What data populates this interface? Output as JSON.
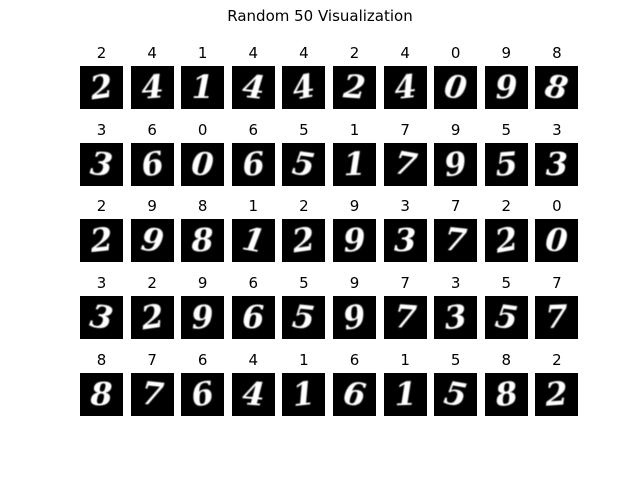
{
  "title": "Random 50 Visualization",
  "chart_data": {
    "type": "image_grid",
    "title": "Random 50 Visualization",
    "rows": 5,
    "cols": 10,
    "labels": [
      [
        "2",
        "4",
        "1",
        "4",
        "4",
        "2",
        "4",
        "0",
        "9",
        "8"
      ],
      [
        "3",
        "6",
        "0",
        "6",
        "5",
        "1",
        "7",
        "9",
        "5",
        "3"
      ],
      [
        "2",
        "9",
        "8",
        "1",
        "2",
        "9",
        "3",
        "7",
        "2",
        "0"
      ],
      [
        "3",
        "2",
        "9",
        "6",
        "5",
        "9",
        "7",
        "3",
        "5",
        "7"
      ],
      [
        "8",
        "7",
        "6",
        "4",
        "1",
        "6",
        "1",
        "5",
        "8",
        "2"
      ]
    ],
    "image_background": "#000000",
    "digit_color": "#ffffff"
  },
  "colors": {
    "page_background": "#ffffff",
    "text": "#000000"
  }
}
